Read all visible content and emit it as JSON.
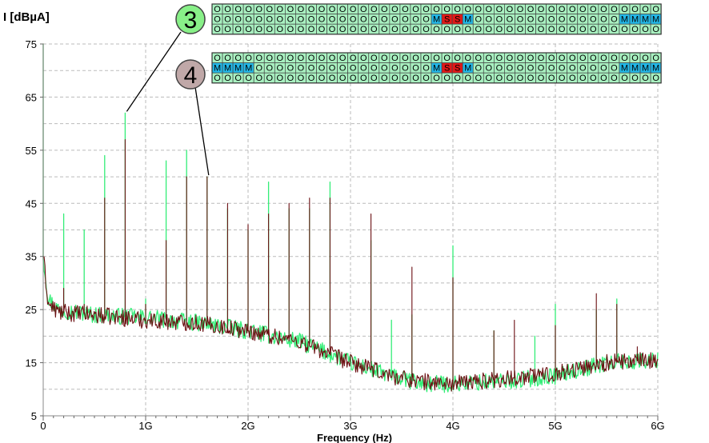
{
  "chart_data": {
    "type": "line",
    "title": "",
    "ylabel": "I [dBµA]",
    "xlabel": "Frequency (Hz)",
    "xlim": [
      0,
      6000000000
    ],
    "ylim": [
      5,
      75
    ],
    "y_ticks": [
      5,
      15,
      25,
      35,
      45,
      55,
      65,
      75
    ],
    "y_tick_labels": [
      "5",
      "15",
      "25",
      "35",
      "45",
      "55",
      "65",
      "75"
    ],
    "x_ticks": [
      0,
      1000000000,
      2000000000,
      3000000000,
      4000000000,
      5000000000,
      6000000000
    ],
    "x_tick_labels": [
      "0",
      "1G",
      "2G",
      "3G",
      "4G",
      "5G",
      "6G"
    ],
    "grid": true,
    "series": [
      {
        "id": "3",
        "color": "#33ee77",
        "baseline": [
          [
            0,
            35
          ],
          [
            50000000,
            27
          ],
          [
            150000000,
            25
          ],
          [
            500000000,
            24
          ],
          [
            1000000000,
            23.5
          ],
          [
            1500000000,
            22.5
          ],
          [
            2000000000,
            21
          ],
          [
            2500000000,
            19
          ],
          [
            3000000000,
            15
          ],
          [
            3400000000,
            12.5
          ],
          [
            3700000000,
            11
          ],
          [
            4000000000,
            11
          ],
          [
            4500000000,
            11.5
          ],
          [
            5000000000,
            12.5
          ],
          [
            5500000000,
            15
          ],
          [
            6000000000,
            15.5
          ]
        ],
        "peaks": [
          [
            0,
            75
          ],
          [
            200000000,
            43
          ],
          [
            400000000,
            40
          ],
          [
            600000000,
            54
          ],
          [
            800000000,
            62
          ],
          [
            1000000000,
            27
          ],
          [
            1200000000,
            53
          ],
          [
            1400000000,
            55
          ],
          [
            1600000000,
            50
          ],
          [
            1800000000,
            44
          ],
          [
            2000000000,
            40
          ],
          [
            2200000000,
            49
          ],
          [
            2400000000,
            44
          ],
          [
            2600000000,
            44
          ],
          [
            2800000000,
            49
          ],
          [
            3200000000,
            38
          ],
          [
            3400000000,
            23
          ],
          [
            3600000000,
            24
          ],
          [
            4000000000,
            37
          ],
          [
            4400000000,
            21
          ],
          [
            4800000000,
            20
          ],
          [
            5000000000,
            26
          ],
          [
            5400000000,
            25
          ],
          [
            5600000000,
            27
          ]
        ]
      },
      {
        "id": "4",
        "color": "#6b0f12",
        "baseline": [
          [
            0,
            35
          ],
          [
            50000000,
            26
          ],
          [
            150000000,
            24.5
          ],
          [
            500000000,
            24
          ],
          [
            1000000000,
            23
          ],
          [
            1500000000,
            22.5
          ],
          [
            2000000000,
            21
          ],
          [
            2500000000,
            19
          ],
          [
            3000000000,
            15
          ],
          [
            3400000000,
            12.5
          ],
          [
            3700000000,
            11.5
          ],
          [
            4000000000,
            11
          ],
          [
            4500000000,
            12
          ],
          [
            5000000000,
            13
          ],
          [
            5500000000,
            15
          ],
          [
            6000000000,
            15.5
          ]
        ],
        "peaks": [
          [
            0,
            75
          ],
          [
            200000000,
            29
          ],
          [
            400000000,
            26
          ],
          [
            600000000,
            46
          ],
          [
            800000000,
            57
          ],
          [
            1000000000,
            26
          ],
          [
            1200000000,
            38
          ],
          [
            1400000000,
            50
          ],
          [
            1600000000,
            50
          ],
          [
            1800000000,
            45
          ],
          [
            2000000000,
            41
          ],
          [
            2200000000,
            43
          ],
          [
            2400000000,
            45
          ],
          [
            2600000000,
            46
          ],
          [
            2800000000,
            46
          ],
          [
            3200000000,
            43
          ],
          [
            3600000000,
            33
          ],
          [
            4000000000,
            31
          ],
          [
            4400000000,
            21
          ],
          [
            4600000000,
            23
          ],
          [
            5000000000,
            22
          ],
          [
            5400000000,
            28
          ],
          [
            5600000000,
            26
          ],
          [
            5800000000,
            18
          ]
        ]
      }
    ]
  },
  "callouts": [
    {
      "label": "3",
      "color": "#88f088",
      "x_hz": 800000000,
      "y_dbua": 62,
      "grid": [
        [
          "O",
          "O",
          "O",
          "O",
          "O",
          "O",
          "O",
          "O",
          "O",
          "O",
          "O",
          "O",
          "O",
          "O",
          "O",
          "O",
          "O",
          "O",
          "O",
          "O",
          "O",
          "O",
          "O",
          "O",
          "O",
          "O",
          "O",
          "O",
          "O",
          "O",
          "O",
          "O",
          "O",
          "O",
          "O",
          "O",
          "O",
          "O",
          "O",
          "O",
          "O",
          "O",
          "O"
        ],
        [
          "O",
          "O",
          "O",
          "O",
          "O",
          "O",
          "O",
          "O",
          "O",
          "O",
          "O",
          "O",
          "O",
          "O",
          "O",
          "O",
          "O",
          "O",
          "O",
          "O",
          "O",
          "M",
          "S",
          "S",
          "M",
          "O",
          "O",
          "O",
          "O",
          "O",
          "O",
          "O",
          "O",
          "O",
          "O",
          "O",
          "O",
          "O",
          "O",
          "M",
          "M",
          "M",
          "M"
        ],
        [
          "O",
          "O",
          "O",
          "O",
          "O",
          "O",
          "O",
          "O",
          "O",
          "O",
          "O",
          "O",
          "O",
          "O",
          "O",
          "O",
          "O",
          "O",
          "O",
          "O",
          "O",
          "O",
          "O",
          "O",
          "O",
          "O",
          "O",
          "O",
          "O",
          "O",
          "O",
          "O",
          "O",
          "O",
          "O",
          "O",
          "O",
          "O",
          "O",
          "O",
          "O",
          "O",
          "O"
        ]
      ]
    },
    {
      "label": "4",
      "color": "#c0a8a8",
      "x_hz": 1600000000,
      "y_dbua": 50,
      "grid": [
        [
          "O",
          "O",
          "O",
          "O",
          "O",
          "O",
          "O",
          "O",
          "O",
          "O",
          "O",
          "O",
          "O",
          "O",
          "O",
          "O",
          "O",
          "O",
          "O",
          "O",
          "O",
          "O",
          "O",
          "O",
          "O",
          "O",
          "O",
          "O",
          "O",
          "O",
          "O",
          "O",
          "O",
          "O",
          "O",
          "O",
          "O",
          "O",
          "O",
          "O",
          "O",
          "O",
          "O"
        ],
        [
          "M",
          "M",
          "M",
          "M",
          "O",
          "O",
          "O",
          "O",
          "O",
          "O",
          "O",
          "O",
          "O",
          "O",
          "O",
          "O",
          "O",
          "O",
          "O",
          "O",
          "O",
          "M",
          "S",
          "S",
          "M",
          "O",
          "O",
          "O",
          "O",
          "O",
          "O",
          "O",
          "O",
          "O",
          "O",
          "O",
          "O",
          "O",
          "O",
          "M",
          "M",
          "M",
          "M"
        ],
        [
          "O",
          "O",
          "O",
          "O",
          "O",
          "O",
          "O",
          "O",
          "O",
          "O",
          "O",
          "O",
          "O",
          "O",
          "O",
          "O",
          "O",
          "O",
          "O",
          "O",
          "O",
          "O",
          "O",
          "O",
          "O",
          "O",
          "O",
          "O",
          "O",
          "O",
          "O",
          "O",
          "O",
          "O",
          "O",
          "O",
          "O",
          "O",
          "O",
          "O",
          "O",
          "O",
          "O"
        ]
      ]
    }
  ],
  "cell_colors": {
    "O": "#a8f0c0",
    "M": "#22b8e8",
    "S": "#e01818"
  }
}
